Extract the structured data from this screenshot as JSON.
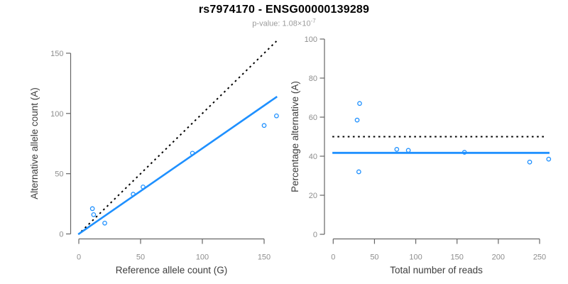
{
  "header": {
    "title": "rs7974170 - ENSG00000139289",
    "subtitle_prefix": "p-value: 1.08×10",
    "subtitle_exponent": "-7"
  },
  "colors": {
    "accent_blue": "#1E90FF",
    "identity_black": "#000000",
    "axis_line": "#666666",
    "tick_label": "#8e8e8e",
    "axis_title": "#3d3d3d",
    "subtitle_gray": "#9b9b9b"
  },
  "chart_data": [
    {
      "type": "scatter",
      "name": "allele-counts",
      "xlabel": "Reference allele count (G)",
      "ylabel": "Alternative allele count (A)",
      "xticks": [
        0,
        50,
        100,
        150
      ],
      "yticks": [
        0,
        50,
        100,
        150
      ],
      "xlim": [
        0,
        160
      ],
      "ylim": [
        0,
        160
      ],
      "grid": false,
      "points": [
        {
          "x": 11,
          "y": 21
        },
        {
          "x": 12,
          "y": 16
        },
        {
          "x": 21,
          "y": 9
        },
        {
          "x": 44,
          "y": 33
        },
        {
          "x": 52,
          "y": 39
        },
        {
          "x": 92,
          "y": 67
        },
        {
          "x": 150,
          "y": 90
        },
        {
          "x": 160,
          "y": 98
        }
      ],
      "lines": [
        {
          "name": "identity-line",
          "x1": 2,
          "y1": 2,
          "x2": 160,
          "y2": 160,
          "dashed": true,
          "color": "#000000",
          "width": 2
        },
        {
          "name": "regression-line",
          "x1": -0.5,
          "y1": -0.3,
          "x2": 160.5,
          "y2": 114,
          "dashed": false,
          "color": "#1E90FF",
          "width": 2.6
        }
      ]
    },
    {
      "type": "scatter",
      "name": "percentage-vs-coverage",
      "xlabel": "Total number of reads",
      "ylabel": "Percentage alternative (A)",
      "xticks": [
        0,
        50,
        100,
        150,
        200,
        250
      ],
      "yticks": [
        0,
        20,
        40,
        60,
        80,
        100
      ],
      "xlim": [
        0,
        262
      ],
      "ylim": [
        0,
        100
      ],
      "grid": false,
      "points": [
        {
          "x": 32,
          "y": 67
        },
        {
          "x": 29,
          "y": 58.5
        },
        {
          "x": 31,
          "y": 32
        },
        {
          "x": 77,
          "y": 43.5
        },
        {
          "x": 91,
          "y": 43
        },
        {
          "x": 159,
          "y": 42
        },
        {
          "x": 238,
          "y": 37
        },
        {
          "x": 261,
          "y": 38.5
        }
      ],
      "lines": [
        {
          "name": "expected-50pct-line",
          "x1": -1,
          "y1": 50,
          "x2": 259,
          "y2": 50,
          "dashed": true,
          "color": "#000000",
          "width": 2
        },
        {
          "name": "mean-percentage-line",
          "x1": -1,
          "y1": 41.7,
          "x2": 262,
          "y2": 41.7,
          "dashed": false,
          "color": "#1E90FF",
          "width": 2.8
        }
      ]
    }
  ]
}
